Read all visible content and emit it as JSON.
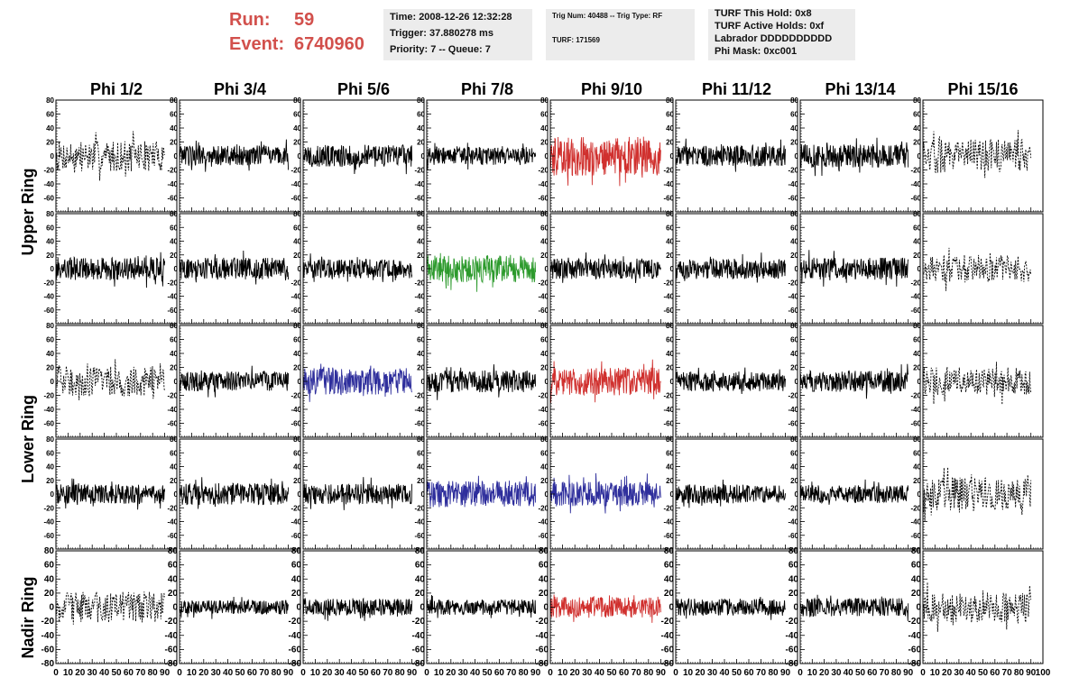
{
  "header": {
    "run_label": "Run:",
    "run_value": "59",
    "event_label": "Event:",
    "event_value": "6740960",
    "color_accent": "#d2504c"
  },
  "info_boxes": {
    "time": "Time: 2008-12-26 12:32:28",
    "trigger": "Trigger: 37.880278 ms",
    "priority": "Priority: 7 -- Queue: 7",
    "trig_num": "Trig Num: 40488 -- Trig Type: RF",
    "turf": "TURF: 171569",
    "turf_hold": "TURF This Hold: 0x8",
    "turf_active": "TURF Active Holds: 0xf",
    "labrador": "Labrador DDDDDDDDDD",
    "phi_mask": "Phi Mask: 0xc001"
  },
  "chart_data": {
    "type": "line",
    "title": "",
    "columns": [
      "Phi 1/2",
      "Phi 3/4",
      "Phi 5/6",
      "Phi 7/8",
      "Phi 9/10",
      "Phi 11/12",
      "Phi 13/14",
      "Phi 15/16"
    ],
    "row_labels": [
      "Upper Ring",
      "Lower Ring",
      "Nadir Ring"
    ],
    "xlim": [
      0,
      100
    ],
    "xticks": [
      0,
      10,
      20,
      30,
      40,
      50,
      60,
      70,
      80,
      90
    ],
    "xtick_labels": [
      "0",
      "10",
      "20",
      "30",
      "40",
      "50",
      "60",
      "70",
      "80",
      "90"
    ],
    "last_xtick_label": "100",
    "ylim": [
      -80,
      80
    ],
    "yticks": [
      -60,
      -40,
      -20,
      0,
      20,
      40,
      60,
      80
    ],
    "bottom_yticks": [
      -80,
      -60,
      -40,
      -20,
      0,
      20,
      40,
      60,
      80
    ],
    "grid": false,
    "colors": {
      "black": "#000000",
      "red": "#d0302e",
      "green": "#2c9a2c",
      "blue": "#2e2e9c"
    },
    "panels": [
      [
        "dashed",
        "black",
        "black",
        "black",
        "red",
        "black",
        "black",
        "dashed"
      ],
      [
        "black",
        "black",
        "black",
        "green",
        "black",
        "black",
        "black",
        "dashed"
      ],
      [
        "dashed",
        "black",
        "blue",
        "black",
        "red",
        "black",
        "black",
        "dashed"
      ],
      [
        "black",
        "black",
        "black",
        "blue",
        "blue",
        "black",
        "black",
        "dashed"
      ],
      [
        "dashed",
        "black",
        "black",
        "black",
        "red",
        "black",
        "black",
        "dashed"
      ]
    ],
    "amplitudes": [
      [
        22,
        15,
        16,
        13,
        28,
        15,
        17,
        24
      ],
      [
        17,
        16,
        14,
        20,
        15,
        15,
        16,
        20
      ],
      [
        22,
        14,
        19,
        16,
        20,
        14,
        15,
        20
      ],
      [
        14,
        16,
        15,
        19,
        18,
        14,
        13,
        24
      ],
      [
        22,
        10,
        12,
        11,
        15,
        12,
        13,
        22
      ]
    ],
    "x_range": [
      0,
      90
    ]
  }
}
